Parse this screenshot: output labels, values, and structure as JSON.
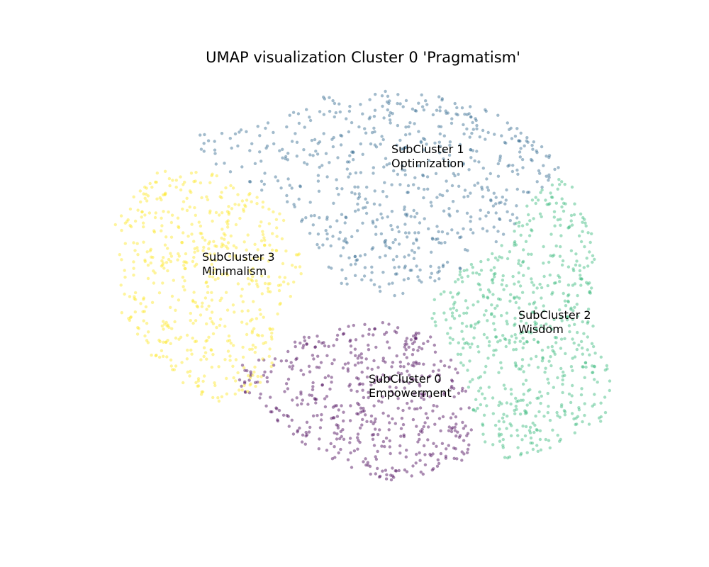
{
  "chart_data": {
    "type": "scatter",
    "title": "UMAP visualization Cluster 0 'Pragmatism'",
    "xlabel": "",
    "ylabel": "",
    "axes_visible": false,
    "grid": false,
    "legend": "none",
    "point_opacity": 0.45,
    "point_seed": 12345,
    "series": [
      {
        "id": 0,
        "color": "#440154",
        "count": 520,
        "label_line1": "SubCluster 0",
        "label_line2": "Empowerment",
        "label_position": [
          520,
          540
        ],
        "region": [
          [
            330,
            520
          ],
          [
            380,
            500
          ],
          [
            440,
            470
          ],
          [
            480,
            460
          ],
          [
            540,
            455
          ],
          [
            600,
            470
          ],
          [
            640,
            500
          ],
          [
            660,
            560
          ],
          [
            670,
            620
          ],
          [
            650,
            655
          ],
          [
            600,
            670
          ],
          [
            555,
            680
          ],
          [
            500,
            665
          ],
          [
            440,
            635
          ],
          [
            400,
            605
          ],
          [
            370,
            580
          ],
          [
            340,
            550
          ]
        ]
      },
      {
        "id": 1,
        "color": "#31688e",
        "count": 620,
        "label_line1": "SubCluster 1",
        "label_line2": "Optimization",
        "label_position": [
          552,
          216
        ],
        "region": [
          [
            270,
            190
          ],
          [
            320,
            180
          ],
          [
            380,
            170
          ],
          [
            410,
            160
          ],
          [
            440,
            140
          ],
          [
            480,
            128
          ],
          [
            530,
            125
          ],
          [
            590,
            130
          ],
          [
            640,
            140
          ],
          [
            690,
            155
          ],
          [
            740,
            180
          ],
          [
            780,
            220
          ],
          [
            795,
            240
          ],
          [
            740,
            290
          ],
          [
            720,
            330
          ],
          [
            690,
            360
          ],
          [
            650,
            380
          ],
          [
            620,
            400
          ],
          [
            590,
            430
          ],
          [
            560,
            420
          ],
          [
            520,
            410
          ],
          [
            480,
            400
          ],
          [
            450,
            360
          ],
          [
            430,
            320
          ],
          [
            400,
            290
          ],
          [
            330,
            250
          ],
          [
            290,
            230
          ]
        ]
      },
      {
        "id": 2,
        "color": "#35b779",
        "count": 620,
        "label_line1": "SubCluster 2",
        "label_line2": "Wisdom",
        "label_position": [
          731,
          450
        ],
        "region": [
          [
            795,
            240
          ],
          [
            820,
            290
          ],
          [
            838,
            330
          ],
          [
            840,
            400
          ],
          [
            835,
            450
          ],
          [
            855,
            500
          ],
          [
            865,
            550
          ],
          [
            850,
            600
          ],
          [
            800,
            620
          ],
          [
            760,
            640
          ],
          [
            720,
            650
          ],
          [
            680,
            630
          ],
          [
            660,
            580
          ],
          [
            650,
            520
          ],
          [
            630,
            480
          ],
          [
            600,
            440
          ],
          [
            620,
            400
          ],
          [
            650,
            380
          ],
          [
            690,
            360
          ],
          [
            720,
            330
          ],
          [
            740,
            290
          ]
        ]
      },
      {
        "id": 3,
        "color": "#fde725",
        "count": 540,
        "label_line1": "SubCluster 3",
        "label_line2": "Minimalism",
        "label_position": [
          285,
          368
        ],
        "region": [
          [
            230,
            235
          ],
          [
            290,
            240
          ],
          [
            340,
            260
          ],
          [
            380,
            280
          ],
          [
            400,
            310
          ],
          [
            410,
            350
          ],
          [
            440,
            370
          ],
          [
            420,
            400
          ],
          [
            400,
            440
          ],
          [
            390,
            490
          ],
          [
            380,
            530
          ],
          [
            350,
            560
          ],
          [
            310,
            570
          ],
          [
            260,
            545
          ],
          [
            220,
            510
          ],
          [
            190,
            480
          ],
          [
            170,
            440
          ],
          [
            165,
            380
          ],
          [
            160,
            320
          ],
          [
            180,
            280
          ],
          [
            210,
            255
          ]
        ]
      }
    ]
  }
}
